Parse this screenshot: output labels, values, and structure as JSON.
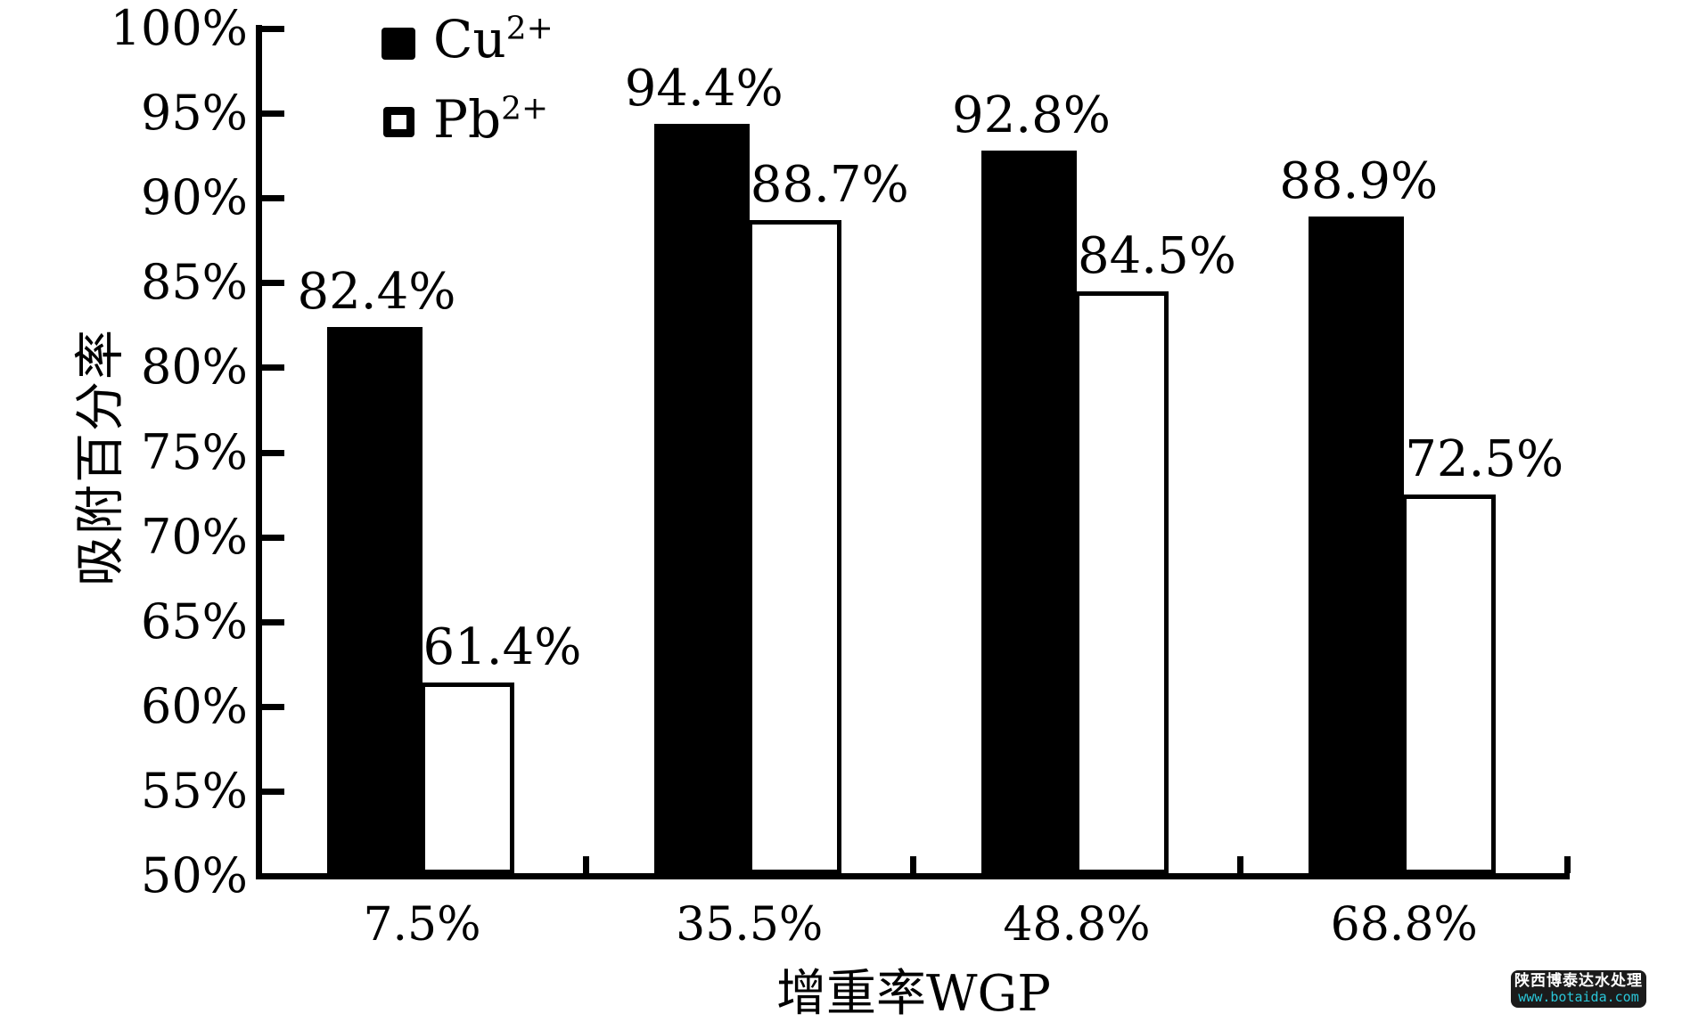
{
  "chart_data": {
    "type": "bar",
    "title": "",
    "categories": [
      "7.5%",
      "35.5%",
      "48.8%",
      "68.8%"
    ],
    "series": [
      {
        "name": "Cu2+",
        "legend_base": "Cu",
        "legend_sup": "2+",
        "swatch": "filled",
        "color": "#000000",
        "values": [
          82.4,
          94.4,
          92.8,
          88.9
        ],
        "labels": [
          "82.4%",
          "94.4%",
          "92.8%",
          "88.9%"
        ]
      },
      {
        "name": "Pb2+",
        "legend_base": "Pb",
        "legend_sup": "2+",
        "swatch": "hollow",
        "color": "#ffffff",
        "border_color": "#000000",
        "values": [
          61.4,
          88.7,
          84.5,
          72.5
        ],
        "labels": [
          "61.4%",
          "88.7%",
          "84.5%",
          "72.5%"
        ]
      }
    ],
    "xlabel": "增重率WGP",
    "ylabel": "吸附百分率",
    "ylim": [
      50,
      100
    ],
    "ytick_step": 5,
    "ytick_labels": [
      "100%",
      "95%",
      "90%",
      "85%",
      "80%",
      "75%",
      "70%",
      "65%",
      "60%",
      "55%",
      "50%"
    ],
    "legend_position": "top-left-inside",
    "grid": false,
    "axis_color": "#000000"
  },
  "watermark": {
    "line1": "陕西博泰达水处理",
    "line2": "www.botaida.com",
    "bg_color": "#1b1b1b",
    "line1_color": "#ffffff",
    "line2_color": "#2ac6d8"
  }
}
